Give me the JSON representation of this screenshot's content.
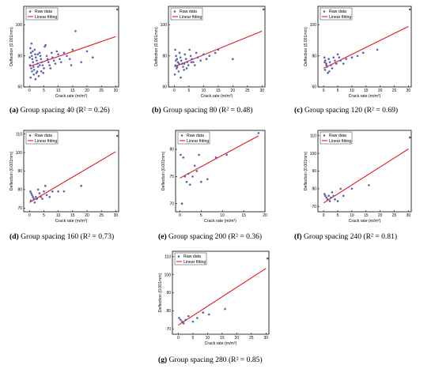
{
  "figure": {
    "legend_raw": "Raw data",
    "legend_fit": "Linear fitting",
    "xlabel": "Crack rate (m/m²)",
    "ylabel": "Deflection (0.001mm)",
    "colors": {
      "points": "#5b5fb0",
      "fit": "#e8141b"
    }
  },
  "chart_data": [
    {
      "type": "scatter",
      "caption_letter": "(a)",
      "caption_text": " Group spacing 40 (R² = 0.26)",
      "xlim": [
        -2,
        31
      ],
      "ylim": [
        60,
        112
      ],
      "xticks": [
        0,
        5,
        10,
        15,
        20,
        25,
        30
      ],
      "yticks": [
        60,
        80,
        100
      ],
      "fit": {
        "x": [
          0,
          30
        ],
        "y": [
          73.2,
          92.5
        ]
      },
      "points": [
        [
          0.3,
          85
        ],
        [
          0.5,
          82
        ],
        [
          0.8,
          80
        ],
        [
          1.0,
          78
        ],
        [
          1.2,
          76
        ],
        [
          0.2,
          74
        ],
        [
          0.6,
          72
        ],
        [
          0.9,
          70
        ],
        [
          1.5,
          68
        ],
        [
          0.4,
          66
        ],
        [
          1.8,
          84
        ],
        [
          2.0,
          81
        ],
        [
          2.2,
          79
        ],
        [
          2.5,
          77
        ],
        [
          2.8,
          75
        ],
        [
          3.0,
          73
        ],
        [
          1.6,
          71
        ],
        [
          2.4,
          69
        ],
        [
          3.2,
          67
        ],
        [
          2.1,
          65
        ],
        [
          3.5,
          82
        ],
        [
          3.8,
          80
        ],
        [
          4.0,
          78
        ],
        [
          4.3,
          76
        ],
        [
          4.6,
          74
        ],
        [
          5.0,
          72
        ],
        [
          4.1,
          70
        ],
        [
          5.3,
          86
        ],
        [
          5.6,
          87
        ],
        [
          6.0,
          80
        ],
        [
          6.3,
          78
        ],
        [
          6.6,
          76
        ],
        [
          7.0,
          74
        ],
        [
          7.3,
          72
        ],
        [
          7.7,
          82
        ],
        [
          8.0,
          79
        ],
        [
          8.5,
          77
        ],
        [
          9.0,
          75
        ],
        [
          9.5,
          83
        ],
        [
          10.0,
          81
        ],
        [
          10.5,
          78
        ],
        [
          11.0,
          76
        ],
        [
          12.0,
          82
        ],
        [
          13.0,
          80
        ],
        [
          14.0,
          78
        ],
        [
          14.5,
          74
        ],
        [
          15.0,
          84
        ],
        [
          16.0,
          96
        ],
        [
          18.0,
          76
        ],
        [
          20.0,
          83
        ],
        [
          22.0,
          79
        ],
        [
          30.5,
          110
        ],
        [
          0.7,
          88
        ],
        [
          1.1,
          83
        ],
        [
          2.7,
          70
        ],
        [
          3.6,
          74
        ],
        [
          4.8,
          69
        ],
        [
          0.1,
          79
        ],
        [
          1.4,
          73
        ],
        [
          2.9,
          81
        ]
      ]
    },
    {
      "type": "scatter",
      "caption_letter": "(b)",
      "caption_text": " Group spacing 80 (R² = 0.48)",
      "xlim": [
        -2,
        31
      ],
      "ylim": [
        60,
        112
      ],
      "xticks": [
        0,
        5,
        10,
        15,
        20,
        25,
        30
      ],
      "yticks": [
        60,
        80,
        100
      ],
      "fit": {
        "x": [
          0,
          30
        ],
        "y": [
          73.0,
          96.0
        ]
      },
      "points": [
        [
          0.3,
          84
        ],
        [
          0.6,
          80
        ],
        [
          0.9,
          78
        ],
        [
          1.2,
          76
        ],
        [
          0.4,
          74
        ],
        [
          0.8,
          72
        ],
        [
          1.5,
          70
        ],
        [
          1.8,
          82
        ],
        [
          2.1,
          79
        ],
        [
          2.4,
          77
        ],
        [
          2.7,
          75
        ],
        [
          3.0,
          73
        ],
        [
          3.3,
          71
        ],
        [
          3.6,
          81
        ],
        [
          4.0,
          78
        ],
        [
          4.4,
          76
        ],
        [
          4.8,
          74
        ],
        [
          5.2,
          84
        ],
        [
          5.6,
          80
        ],
        [
          6.0,
          78
        ],
        [
          6.5,
          76
        ],
        [
          7.0,
          74
        ],
        [
          7.5,
          82
        ],
        [
          8.0,
          79
        ],
        [
          9.0,
          77
        ],
        [
          10.0,
          81
        ],
        [
          11.0,
          78
        ],
        [
          12.0,
          80
        ],
        [
          14.0,
          82
        ],
        [
          15.0,
          84
        ],
        [
          20.0,
          78
        ],
        [
          30.5,
          110
        ],
        [
          0.2,
          68
        ],
        [
          1.0,
          73
        ],
        [
          2.2,
          66
        ],
        [
          3.4,
          75
        ],
        [
          4.2,
          72
        ],
        [
          5.8,
          76
        ],
        [
          0.5,
          77
        ],
        [
          1.6,
          75
        ]
      ]
    },
    {
      "type": "scatter",
      "caption_letter": "(c)",
      "caption_text": " Group spacing 120 (R² = 0.69)",
      "xlim": [
        -2,
        31
      ],
      "ylim": [
        60,
        112
      ],
      "xticks": [
        0,
        5,
        10,
        15,
        20,
        25,
        30
      ],
      "yticks": [
        60,
        80,
        100
      ],
      "fit": {
        "x": [
          0,
          30
        ],
        "y": [
          72.0,
          99.0
        ]
      },
      "points": [
        [
          0.3,
          79
        ],
        [
          0.6,
          77
        ],
        [
          0.9,
          75
        ],
        [
          1.2,
          73
        ],
        [
          0.5,
          71
        ],
        [
          1.5,
          69
        ],
        [
          1.8,
          78
        ],
        [
          2.2,
          76
        ],
        [
          2.6,
          74
        ],
        [
          3.0,
          72
        ],
        [
          3.5,
          79
        ],
        [
          4.0,
          77
        ],
        [
          4.5,
          75
        ],
        [
          5.0,
          81
        ],
        [
          5.5,
          79
        ],
        [
          6.0,
          77
        ],
        [
          7.0,
          75
        ],
        [
          8.0,
          78
        ],
        [
          10.0,
          79
        ],
        [
          12.0,
          80
        ],
        [
          14.0,
          82
        ],
        [
          19.0,
          84
        ],
        [
          30.5,
          110
        ],
        [
          0.4,
          76
        ],
        [
          1.0,
          74
        ],
        [
          2.0,
          70
        ]
      ]
    },
    {
      "type": "scatter",
      "caption_letter": "(d)",
      "caption_text": " Group spacing 160 (R² = 0.73)",
      "xlim": [
        -2,
        31
      ],
      "ylim": [
        68,
        112
      ],
      "xticks": [
        0,
        5,
        10,
        15,
        20,
        25,
        30
      ],
      "yticks": [
        70,
        80,
        90,
        100,
        110
      ],
      "fit": {
        "x": [
          0,
          30
        ],
        "y": [
          73.0,
          100.5
        ]
      },
      "points": [
        [
          0.3,
          79
        ],
        [
          0.6,
          78
        ],
        [
          0.9,
          77
        ],
        [
          1.2,
          76
        ],
        [
          1.5,
          75
        ],
        [
          0.5,
          74
        ],
        [
          1.8,
          73
        ],
        [
          2.2,
          76
        ],
        [
          2.6,
          75
        ],
        [
          3.0,
          80
        ],
        [
          3.5,
          78
        ],
        [
          4.0,
          76
        ],
        [
          4.5,
          75
        ],
        [
          5.0,
          79
        ],
        [
          5.5,
          82
        ],
        [
          6.0,
          77
        ],
        [
          7.0,
          76
        ],
        [
          8.0,
          79
        ],
        [
          10.0,
          79
        ],
        [
          12.0,
          79
        ],
        [
          18.0,
          82
        ],
        [
          30.5,
          109
        ]
      ]
    },
    {
      "type": "scatter",
      "caption_letter": "(e)",
      "caption_text": " Group spacing 200 (R² = 0.36)",
      "xlim": [
        -1,
        20
      ],
      "ylim": [
        68.5,
        83.5
      ],
      "xticks": [
        0,
        5,
        10,
        15,
        20
      ],
      "yticks": [
        70,
        75,
        80
      ],
      "fit": {
        "x": [
          0,
          18.5
        ],
        "y": [
          74.7,
          82.5
        ]
      },
      "points": [
        [
          0.2,
          79
        ],
        [
          0.5,
          70
        ],
        [
          0.8,
          78.5
        ],
        [
          1.2,
          75
        ],
        [
          1.6,
          74
        ],
        [
          2.0,
          75.5
        ],
        [
          2.4,
          73.5
        ],
        [
          3.0,
          75
        ],
        [
          3.5,
          77
        ],
        [
          4.0,
          76
        ],
        [
          4.5,
          79
        ],
        [
          5.0,
          74
        ],
        [
          5.5,
          82.5
        ],
        [
          6.5,
          74.5
        ],
        [
          8.5,
          78.5
        ],
        [
          11.0,
          79
        ],
        [
          18.5,
          83
        ]
      ]
    },
    {
      "type": "scatter",
      "caption_letter": "(f)",
      "caption_text": " Group spacing 240 (R² = 0.81)",
      "xlim": [
        -2,
        31
      ],
      "ylim": [
        67,
        113
      ],
      "xticks": [
        0,
        5,
        10,
        15,
        20,
        25,
        30
      ],
      "yticks": [
        70,
        80,
        90,
        100,
        110
      ],
      "fit": {
        "x": [
          0,
          30
        ],
        "y": [
          72.0,
          102.5
        ]
      },
      "points": [
        [
          0.3,
          77
        ],
        [
          0.6,
          76
        ],
        [
          1.0,
          75
        ],
        [
          1.4,
          74
        ],
        [
          1.8,
          76
        ],
        [
          2.2,
          73
        ],
        [
          2.6,
          75
        ],
        [
          3.0,
          78
        ],
        [
          3.5,
          76
        ],
        [
          4.0,
          74
        ],
        [
          5.0,
          73
        ],
        [
          6.0,
          80
        ],
        [
          7.0,
          76
        ],
        [
          10.0,
          80
        ],
        [
          16.0,
          82
        ],
        [
          30.5,
          109
        ]
      ]
    },
    {
      "type": "scatter",
      "caption_letter": "(g)",
      "caption_text": " Group spacing 280 (R² = 0.85)",
      "xlim": [
        -2,
        31
      ],
      "ylim": [
        67,
        113
      ],
      "xticks": [
        0,
        5,
        10,
        15,
        20,
        25,
        30
      ],
      "yticks": [
        70,
        80,
        90,
        100,
        110
      ],
      "fit": {
        "x": [
          0,
          30
        ],
        "y": [
          72.0,
          103.5
        ]
      },
      "points": [
        [
          0.3,
          76
        ],
        [
          0.8,
          75
        ],
        [
          1.3,
          74
        ],
        [
          1.8,
          73
        ],
        [
          2.5,
          75
        ],
        [
          3.5,
          77
        ],
        [
          5.0,
          74
        ],
        [
          6.5,
          76
        ],
        [
          8.5,
          79
        ],
        [
          10.5,
          78
        ],
        [
          16.0,
          81
        ],
        [
          30.5,
          109
        ]
      ]
    }
  ]
}
